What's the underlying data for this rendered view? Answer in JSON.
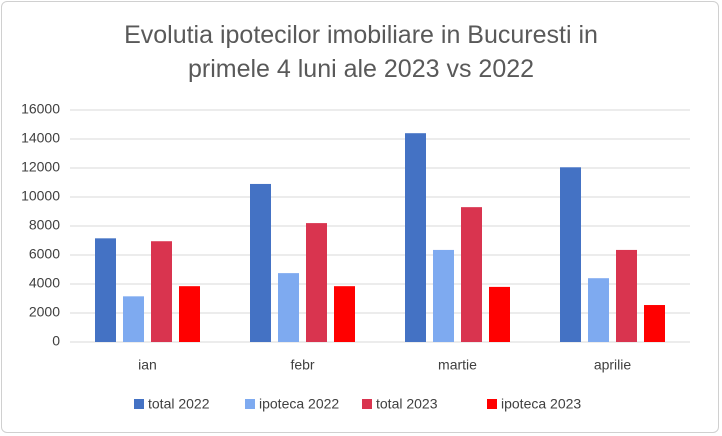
{
  "chart_data": {
    "type": "bar",
    "title": "Evolutia ipotecilor imobiliare in Bucuresti in primele 4 luni ale 2023 vs 2022",
    "categories": [
      "ian",
      "febr",
      "martie",
      "aprilie"
    ],
    "series": [
      {
        "name": "total 2022",
        "color": "#4472c4",
        "values": [
          7150,
          10900,
          14400,
          12050
        ]
      },
      {
        "name": "ipoteca 2022",
        "color": "#7eaaf0",
        "values": [
          3150,
          4750,
          6350,
          4400
        ]
      },
      {
        "name": "total 2023",
        "color": "#d9344f",
        "values": [
          6950,
          8200,
          9300,
          6350
        ]
      },
      {
        "name": "ipoteca 2023",
        "color": "#ff0000",
        "values": [
          3850,
          3850,
          3800,
          2550
        ]
      }
    ],
    "ylim": [
      0,
      16000
    ],
    "yticks": [
      0,
      2000,
      4000,
      6000,
      8000,
      10000,
      12000,
      14000,
      16000
    ],
    "grid": true,
    "legend": "bottom"
  }
}
